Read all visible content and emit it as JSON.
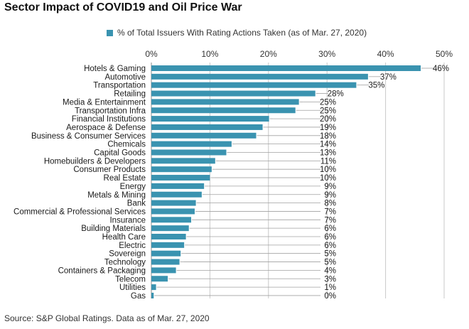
{
  "title": "Sector Impact of COVID19 and Oil Price War",
  "source": "Source: S&P Global Ratings. Data as of Mar. 27, 2020",
  "colors": {
    "bar": "#3a93b0",
    "grid": "#c8c8c8",
    "leader": "#a0a0a0"
  },
  "chart_data": {
    "type": "bar",
    "orientation": "horizontal",
    "title": "Sector Impact of COVID19 and Oil Price War",
    "xlim": [
      0,
      50
    ],
    "xticks": [
      0,
      10,
      20,
      30,
      40,
      50
    ],
    "xtick_labels": [
      "0%",
      "10%",
      "20%",
      "30%",
      "40%",
      "50%"
    ],
    "x_axis_position": "top",
    "grid": true,
    "legend_position": "top",
    "series": [
      {
        "name": "% of Total Issuers With Rating Actions Taken (as of Mar. 27, 2020)"
      }
    ],
    "categories": [
      "Hotels & Gaming",
      "Automotive",
      "Transportation",
      "Retailing",
      "Media & Entertainment",
      "Transportation Infra",
      "Financial Institutions",
      "Aerospace & Defense",
      "Business & Consumer Services",
      "Chemicals",
      "Capital Goods",
      "Homebuilders & Developers",
      "Consumer Products",
      "Real Estate",
      "Energy",
      "Metals & Mining",
      "Bank",
      "Commercial & Professional Services",
      "Insurance",
      "Building Materials",
      "Health Care",
      "Electric",
      "Sovereign",
      "Technology",
      "Containers & Packaging",
      "Telecom",
      "Utilities",
      "Gas"
    ],
    "values": [
      46,
      37,
      35,
      28,
      25.2,
      24.6,
      20.1,
      19,
      17.9,
      13.7,
      12.8,
      10.9,
      10.3,
      10,
      9,
      8.6,
      7.6,
      7.4,
      6.8,
      6.4,
      5.9,
      5.6,
      5,
      4.8,
      4.2,
      2.8,
      0.8,
      0.4
    ],
    "data_labels": [
      "46%",
      "37%",
      "35%",
      "28%",
      "25%",
      "25%",
      "20%",
      "19%",
      "18%",
      "14%",
      "13%",
      "11%",
      "10%",
      "10%",
      "9%",
      "9%",
      "8%",
      "7%",
      "7%",
      "6%",
      "6%",
      "6%",
      "5%",
      "5%",
      "4%",
      "3%",
      "1%",
      "0%"
    ]
  }
}
